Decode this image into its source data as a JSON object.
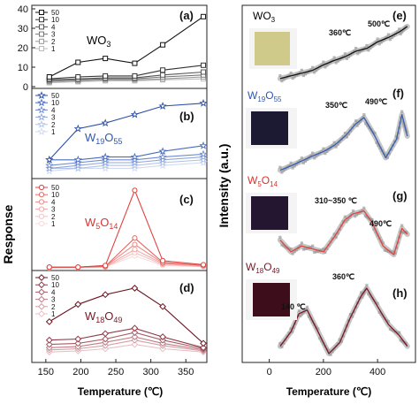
{
  "chart_data": [
    {
      "panel": "(a)",
      "type": "line",
      "material": "WO3",
      "label_color": "#000000",
      "ylim": [
        0,
        40
      ],
      "yticks": [
        0,
        10,
        20,
        30,
        40
      ],
      "x": [
        155,
        196,
        235,
        277,
        317,
        375
      ],
      "marker": "square",
      "series": [
        {
          "name": "50",
          "color": "#111111",
          "values": [
            5,
            12.5,
            14.5,
            12,
            21.5,
            36
          ]
        },
        {
          "name": "10",
          "color": "#333333",
          "values": [
            4,
            5,
            5.5,
            5.5,
            8.5,
            11
          ]
        },
        {
          "name": "4",
          "color": "#555555",
          "values": [
            3.5,
            4,
            4.5,
            4.5,
            6,
            7.5
          ]
        },
        {
          "name": "3",
          "color": "#777777",
          "values": [
            3,
            3.5,
            4,
            4,
            5,
            6
          ]
        },
        {
          "name": "2",
          "color": "#999999",
          "values": [
            2.5,
            3,
            3.5,
            3.5,
            4,
            5
          ]
        },
        {
          "name": "1",
          "color": "#bbbbbb",
          "values": [
            2,
            2.5,
            3,
            3,
            3.5,
            4
          ]
        }
      ]
    },
    {
      "panel": "(b)",
      "type": "line",
      "material": "W19O55",
      "label_color": "#2f56b0",
      "ylim": [
        0,
        15
      ],
      "x": [
        155,
        196,
        235,
        277,
        317,
        375
      ],
      "marker": "star",
      "series": [
        {
          "name": "50",
          "color": "#2b4fa8",
          "values": [
            3,
            8.5,
            9.5,
            11,
            12.5,
            13
          ]
        },
        {
          "name": "10",
          "color": "#4a6cc0",
          "values": [
            3,
            3,
            3.5,
            3.5,
            4.5,
            5.5
          ]
        },
        {
          "name": "4",
          "color": "#6e8ad0",
          "values": [
            2,
            2.5,
            3,
            3,
            3.5,
            4
          ]
        },
        {
          "name": "3",
          "color": "#90a8dd",
          "values": [
            1.5,
            2,
            2.5,
            2.5,
            3,
            3.5
          ]
        },
        {
          "name": "2",
          "color": "#b3c3e8",
          "values": [
            1.5,
            1.5,
            2,
            2,
            2.5,
            3
          ]
        },
        {
          "name": "1",
          "color": "#d0dbf2",
          "values": [
            1,
            1.5,
            1.5,
            1.5,
            2,
            2.5
          ]
        }
      ]
    },
    {
      "panel": "(c)",
      "type": "line",
      "material": "W5O14",
      "label_color": "#d8332f",
      "ylim": [
        0,
        105
      ],
      "x": [
        155,
        196,
        235,
        277,
        317,
        375
      ],
      "marker": "circle",
      "series": [
        {
          "name": "50",
          "color": "#e0433f",
          "values": [
            2,
            2,
            4,
            97,
            10,
            5
          ]
        },
        {
          "name": "10",
          "color": "#e66a66",
          "values": [
            2,
            2,
            3,
            38,
            8,
            4
          ]
        },
        {
          "name": "4",
          "color": "#ec8d8a",
          "values": [
            2,
            2,
            3,
            30,
            7,
            4
          ]
        },
        {
          "name": "3",
          "color": "#f1aaa8",
          "values": [
            1.5,
            2,
            2.5,
            24,
            6,
            3
          ]
        },
        {
          "name": "2",
          "color": "#f5c4c3",
          "values": [
            1.5,
            1.5,
            2,
            20,
            5,
            3
          ]
        },
        {
          "name": "1",
          "color": "#f9dbda",
          "values": [
            1,
            1.5,
            2,
            16,
            4,
            2.5
          ]
        }
      ]
    },
    {
      "panel": "(d)",
      "type": "line",
      "material": "W18O49",
      "label_color": "#7a1625",
      "ylim": [
        0,
        8
      ],
      "x": [
        155,
        196,
        235,
        277,
        317,
        375
      ],
      "marker": "diamond",
      "series": [
        {
          "name": "50",
          "color": "#6e1422",
          "values": [
            3.6,
            5.2,
            6.1,
            6.7,
            5.0,
            1.6
          ]
        },
        {
          "name": "10",
          "color": "#8e3a46",
          "values": [
            1.9,
            2.0,
            2.5,
            3.0,
            2.2,
            1.2
          ]
        },
        {
          "name": "4",
          "color": "#a85a65",
          "values": [
            1.5,
            1.6,
            2.0,
            2.6,
            1.9,
            1.1
          ]
        },
        {
          "name": "3",
          "color": "#c07c85",
          "values": [
            1.2,
            1.3,
            1.7,
            2.2,
            1.6,
            1.0
          ]
        },
        {
          "name": "2",
          "color": "#d59ea5",
          "values": [
            1.0,
            1.1,
            1.4,
            1.9,
            1.4,
            0.9
          ]
        },
        {
          "name": "1",
          "color": "#e6c0c5",
          "values": [
            0.8,
            0.9,
            1.1,
            1.5,
            1.1,
            0.8
          ]
        }
      ]
    },
    {
      "panel": "(e)",
      "type": "line",
      "material": "WO3",
      "label_color": "#000000",
      "line_color": "#111111",
      "annotations": [
        "360℃",
        "500℃"
      ],
      "x": [
        40,
        80,
        120,
        160,
        200,
        240,
        280,
        320,
        360,
        400,
        440,
        480,
        510
      ],
      "values": [
        0.05,
        0.1,
        0.15,
        0.2,
        0.3,
        0.38,
        0.45,
        0.55,
        0.6,
        0.72,
        0.8,
        0.9,
        1.0
      ]
    },
    {
      "panel": "(f)",
      "type": "line",
      "material": "W19O55",
      "label_color": "#2f56b0",
      "line_color": "#3a5fb0",
      "annotations": [
        "350℃",
        "490℃"
      ],
      "x": [
        40,
        80,
        120,
        160,
        200,
        240,
        280,
        320,
        350,
        390,
        430,
        470,
        490,
        510
      ],
      "values": [
        0.05,
        0.12,
        0.2,
        0.28,
        0.35,
        0.45,
        0.6,
        0.8,
        0.9,
        0.6,
        0.25,
        0.55,
        0.95,
        0.6
      ]
    },
    {
      "panel": "(g)",
      "type": "line",
      "material": "W5O14",
      "label_color": "#d8332f",
      "line_color": "#e0433f",
      "annotations": [
        "310~350 ℃",
        "490℃"
      ],
      "x": [
        40,
        80,
        120,
        160,
        200,
        240,
        280,
        310,
        350,
        380,
        420,
        460,
        490,
        510
      ],
      "values": [
        0.4,
        0.2,
        0.3,
        0.25,
        0.2,
        0.45,
        0.75,
        0.85,
        0.9,
        0.7,
        0.3,
        0.15,
        0.6,
        0.5
      ]
    },
    {
      "panel": "(h)",
      "type": "line",
      "material": "W18O49",
      "label_color": "#7a1625",
      "line_color": "#7a1625",
      "annotations": [
        "140 ℃",
        "360℃"
      ],
      "x": [
        40,
        80,
        110,
        140,
        180,
        220,
        260,
        300,
        340,
        360,
        400,
        440,
        480,
        510
      ],
      "values": [
        0.15,
        0.35,
        0.6,
        0.65,
        0.35,
        0.05,
        0.2,
        0.55,
        0.85,
        0.95,
        0.7,
        0.45,
        0.3,
        0.15
      ]
    }
  ],
  "left_axis": {
    "ylabel": "Response",
    "xlabel": "Temperature (℃)",
    "xticks": [
      "150",
      "200",
      "250",
      "300",
      "350"
    ],
    "a_yticks": [
      "0",
      "10",
      "20",
      "30",
      "40"
    ]
  },
  "right_axis": {
    "ylabel": "Intensity (a.u.)",
    "xlabel": "Temperature (℃)",
    "xticks": [
      "0",
      "200",
      "400"
    ]
  },
  "labels": {
    "a": "(a)",
    "b": "(b)",
    "c": "(c)",
    "d": "(d)",
    "e": "(e)",
    "f": "(f)",
    "g": "(g)",
    "h": "(h)",
    "a_mat": "WO",
    "a_sub": "3",
    "b_mat1": "W",
    "b_sub1": "19",
    "b_mat2": "O",
    "b_sub2": "55",
    "c_mat1": "W",
    "c_sub1": "5",
    "c_mat2": "O",
    "c_sub2": "14",
    "d_mat1": "W",
    "d_sub1": "18",
    "d_mat2": "O",
    "d_sub2": "49",
    "e_mat": "WO",
    "e_sub": "3",
    "f_mat1": "W",
    "f_sub1": "19",
    "f_mat2": "O",
    "f_sub2": "55",
    "g_mat1": "W",
    "g_sub1": "5",
    "g_mat2": "O",
    "g_sub2": "14",
    "h_mat1": "W",
    "h_sub1": "18",
    "h_mat2": "O",
    "h_sub2": "49"
  },
  "sample_colors": {
    "e": "#cfc98a",
    "f": "#1c1a33",
    "g": "#241530",
    "h": "#3e0d1c"
  }
}
